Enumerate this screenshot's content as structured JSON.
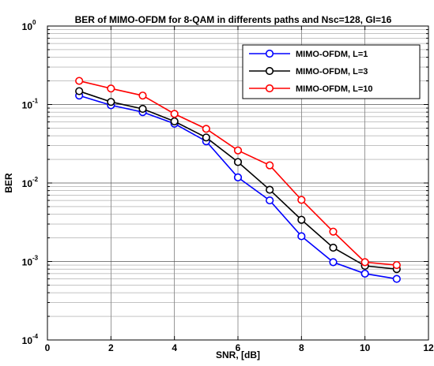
{
  "chart_data": {
    "type": "line",
    "title": "BER of MIMO-OFDM for 8-QAM in differents paths and Nsc=128, GI=16",
    "xlabel": "SNR, [dB]",
    "ylabel": "BER",
    "xlim": [
      0,
      12
    ],
    "ylim": [
      0.0001,
      1
    ],
    "yscale": "log",
    "grid": true,
    "legend_position": "top-right",
    "x_ticks": [
      "0",
      "2",
      "4",
      "6",
      "8",
      "10",
      "12"
    ],
    "y_ticks": [
      {
        "base": "10",
        "exp": "-4"
      },
      {
        "base": "10",
        "exp": "-3"
      },
      {
        "base": "10",
        "exp": "-2"
      },
      {
        "base": "10",
        "exp": "-1"
      },
      {
        "base": "10",
        "exp": "0"
      }
    ],
    "x": [
      1,
      2,
      3,
      4,
      5,
      6,
      7,
      8,
      9,
      10,
      11
    ],
    "series": [
      {
        "name": "MIMO-OFDM, L=1",
        "color": "#0000ff",
        "values": [
          0.13,
          0.098,
          0.08,
          0.057,
          0.034,
          0.0118,
          0.006,
          0.0021,
          0.00098,
          0.0007,
          0.0006
        ]
      },
      {
        "name": "MIMO-OFDM, L=3",
        "color": "#000000",
        "values": [
          0.148,
          0.108,
          0.088,
          0.061,
          0.038,
          0.0185,
          0.0082,
          0.0034,
          0.0015,
          0.00088,
          0.0008
        ]
      },
      {
        "name": "MIMO-OFDM, L=10",
        "color": "#ff0000",
        "values": [
          0.2,
          0.16,
          0.13,
          0.076,
          0.049,
          0.026,
          0.0168,
          0.0061,
          0.0024,
          0.00098,
          0.0009
        ]
      }
    ]
  }
}
